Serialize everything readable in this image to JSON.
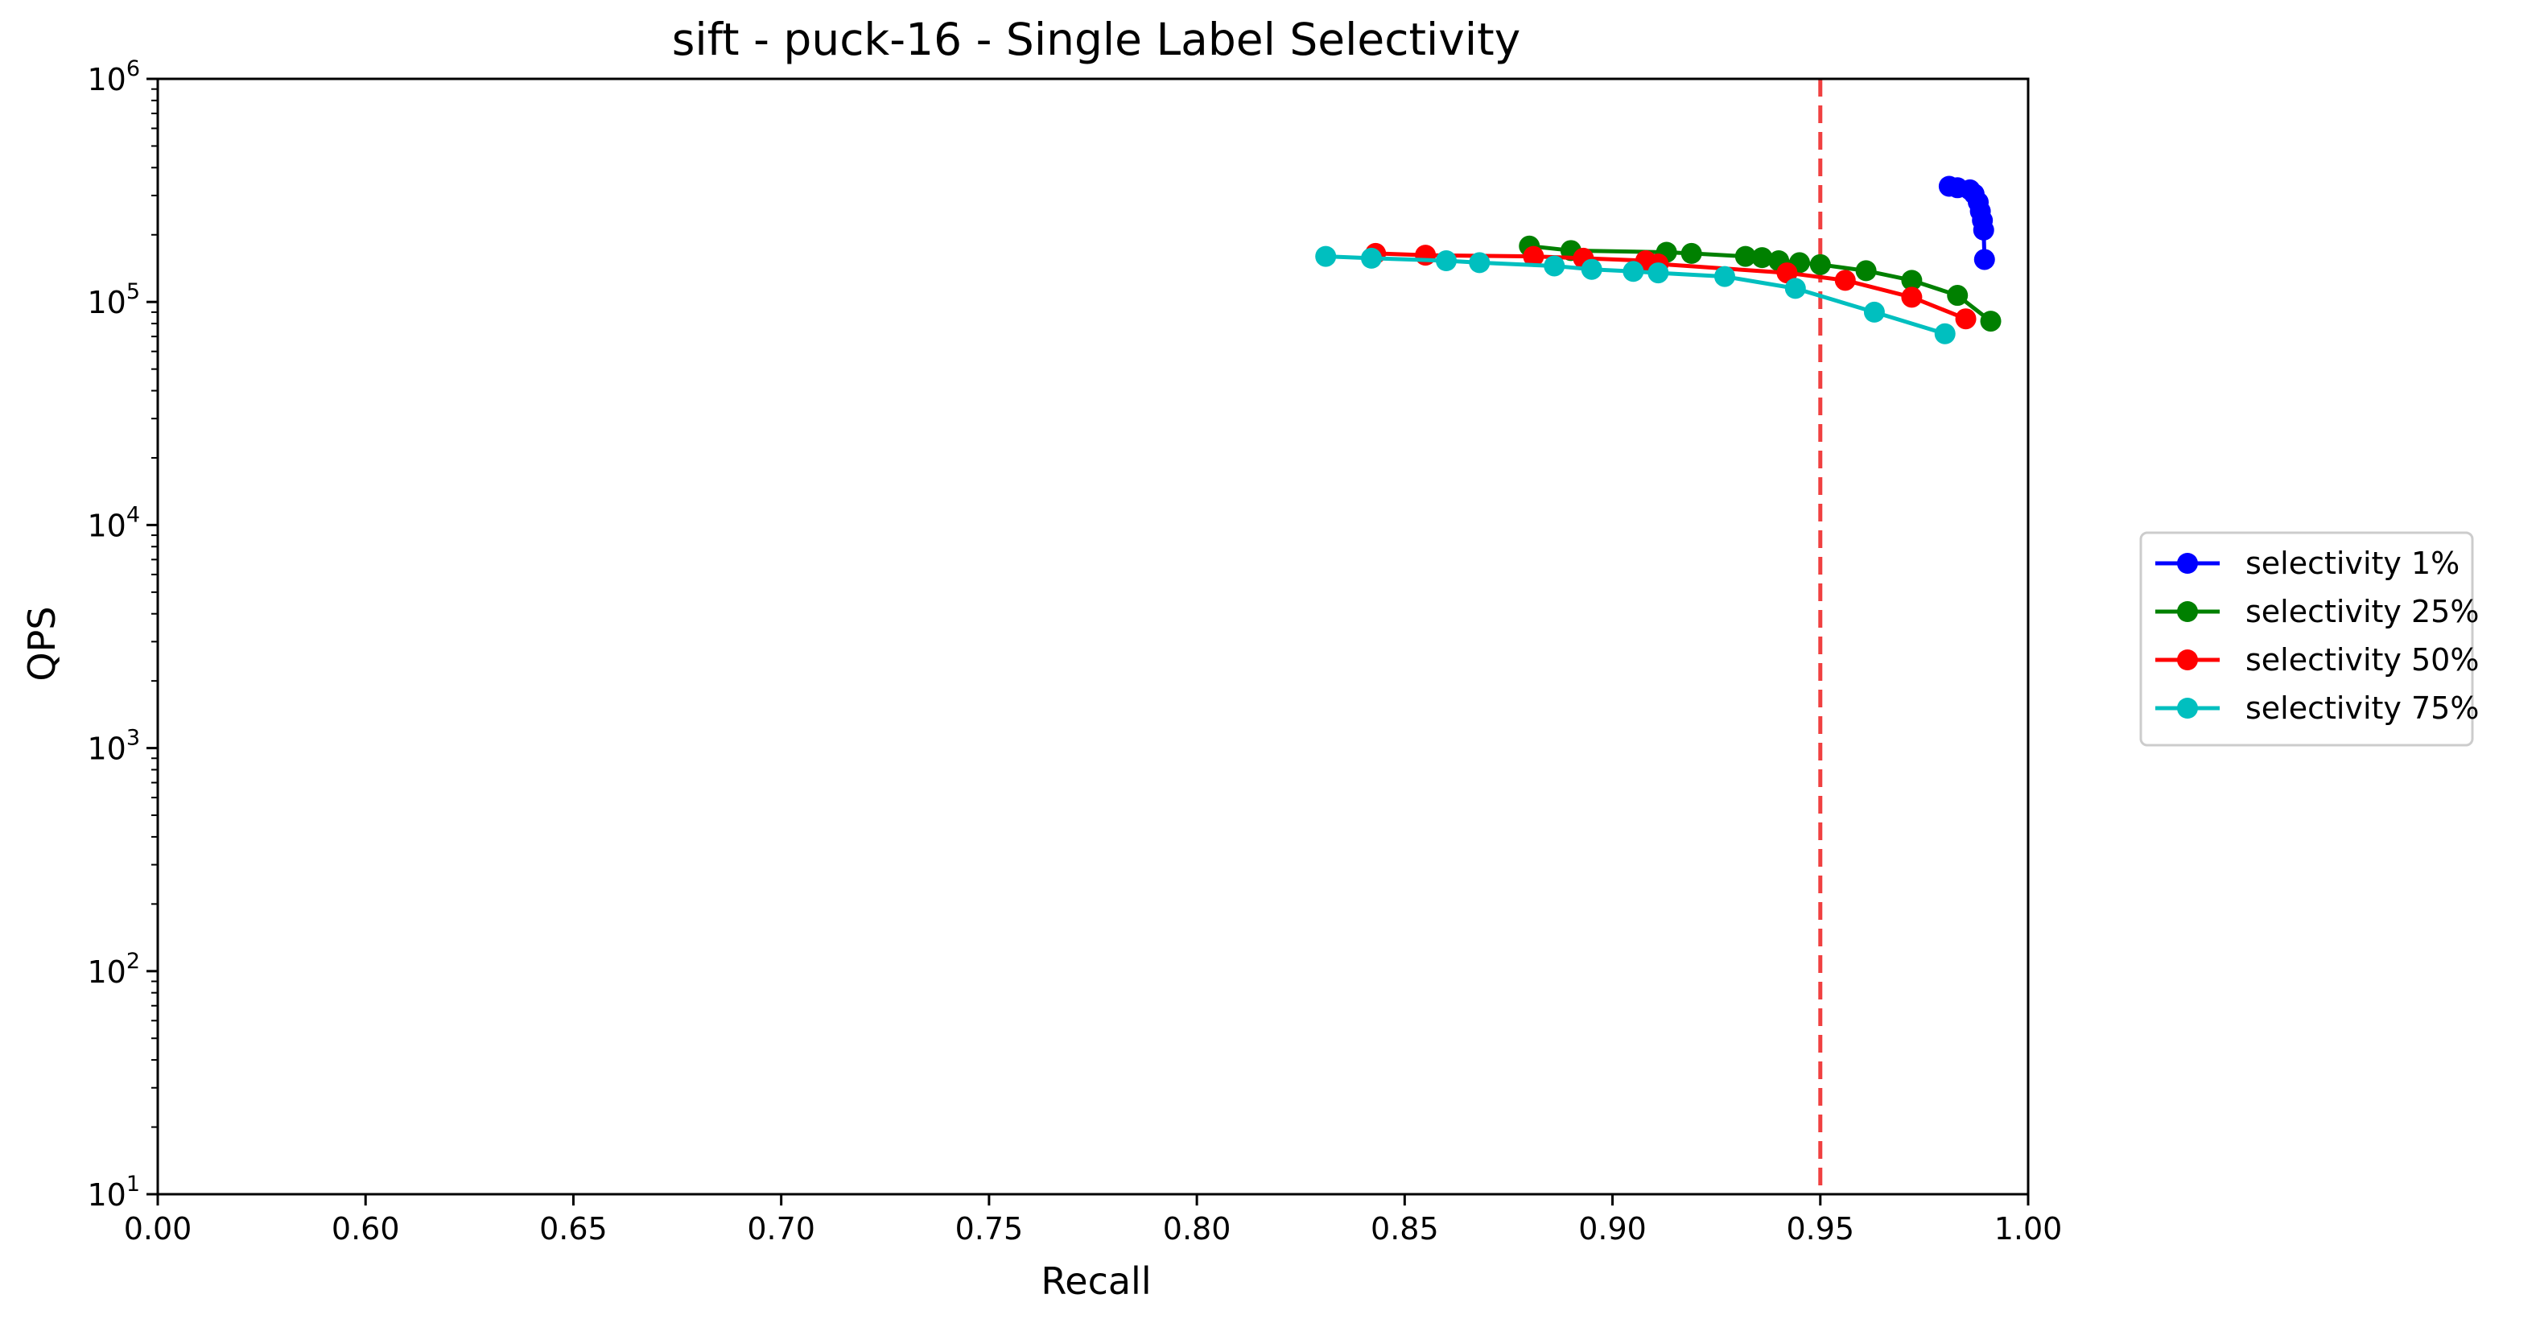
{
  "chart_data": {
    "type": "line",
    "title": "sift - puck-16 - Single Label Selectivity",
    "xlabel": "Recall",
    "ylabel": "QPS",
    "xscale": "piecewise-linear (0.00 then 0.60–1.00)",
    "yscale": "log",
    "xlim": [
      0.0,
      1.0
    ],
    "ylim": [
      10,
      1000000
    ],
    "x_ticks": [
      {
        "value": 0.0,
        "label": "0.00"
      },
      {
        "value": 0.6,
        "label": "0.60"
      },
      {
        "value": 0.65,
        "label": "0.65"
      },
      {
        "value": 0.7,
        "label": "0.70"
      },
      {
        "value": 0.75,
        "label": "0.75"
      },
      {
        "value": 0.8,
        "label": "0.80"
      },
      {
        "value": 0.85,
        "label": "0.85"
      },
      {
        "value": 0.9,
        "label": "0.90"
      },
      {
        "value": 0.95,
        "label": "0.95"
      },
      {
        "value": 1.0,
        "label": "1.00"
      }
    ],
    "y_ticks": [
      {
        "value": 10,
        "base": "10",
        "exp": "1"
      },
      {
        "value": 100,
        "base": "10",
        "exp": "2"
      },
      {
        "value": 1000,
        "base": "10",
        "exp": "3"
      },
      {
        "value": 10000,
        "base": "10",
        "exp": "4"
      },
      {
        "value": 100000,
        "base": "10",
        "exp": "5"
      },
      {
        "value": 1000000,
        "base": "10",
        "exp": "6"
      }
    ],
    "reference_line": {
      "x": 0.95,
      "style": "dashed",
      "color": "#f04040"
    },
    "grid": false,
    "legend_position": "right-center (outside plot)",
    "series": [
      {
        "name": "selectivity 1%",
        "color": "#0000ff",
        "points": [
          [
            0.981,
            330000
          ],
          [
            0.983,
            325000
          ],
          [
            0.986,
            318000
          ],
          [
            0.987,
            305000
          ],
          [
            0.988,
            280000
          ],
          [
            0.9885,
            255000
          ],
          [
            0.989,
            232000
          ],
          [
            0.9893,
            210000
          ],
          [
            0.9895,
            155000
          ]
        ]
      },
      {
        "name": "selectivity 25%",
        "color": "#008000",
        "points": [
          [
            0.88,
            178000
          ],
          [
            0.89,
            170000
          ],
          [
            0.913,
            167000
          ],
          [
            0.919,
            165000
          ],
          [
            0.932,
            160000
          ],
          [
            0.936,
            158000
          ],
          [
            0.94,
            153000
          ],
          [
            0.945,
            150000
          ],
          [
            0.95,
            147000
          ],
          [
            0.961,
            138000
          ],
          [
            0.972,
            125000
          ],
          [
            0.983,
            107000
          ],
          [
            0.991,
            82000
          ]
        ]
      },
      {
        "name": "selectivity 50%",
        "color": "#ff0000",
        "points": [
          [
            0.843,
            165000
          ],
          [
            0.855,
            162000
          ],
          [
            0.881,
            160000
          ],
          [
            0.893,
            157000
          ],
          [
            0.908,
            153000
          ],
          [
            0.911,
            148000
          ],
          [
            0.942,
            135000
          ],
          [
            0.956,
            125000
          ],
          [
            0.972,
            105000
          ],
          [
            0.985,
            84000
          ]
        ]
      },
      {
        "name": "selectivity 75%",
        "color": "#00bfbf",
        "points": [
          [
            0.831,
            160000
          ],
          [
            0.842,
            157000
          ],
          [
            0.86,
            153000
          ],
          [
            0.868,
            150000
          ],
          [
            0.886,
            145000
          ],
          [
            0.895,
            140000
          ],
          [
            0.905,
            137000
          ],
          [
            0.911,
            135000
          ],
          [
            0.927,
            130000
          ],
          [
            0.944,
            115000
          ],
          [
            0.963,
            90000
          ],
          [
            0.98,
            72000
          ]
        ]
      }
    ]
  }
}
